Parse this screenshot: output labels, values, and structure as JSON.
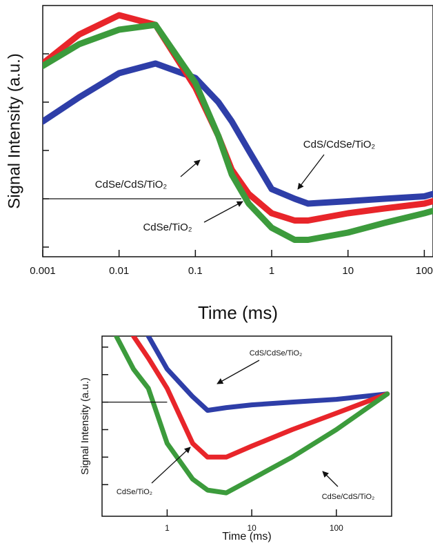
{
  "chart_data": [
    {
      "type": "line",
      "x_label": "Time (ms)",
      "y_label": "Signal Intensity (a.u.)",
      "log_x": true,
      "xlim": [
        0.001,
        130
      ],
      "xticks": [
        0.001,
        0.01,
        0.1,
        1,
        10,
        100
      ],
      "ylim": [
        -1.2,
        4
      ],
      "yticks": [
        -1,
        0,
        1,
        2,
        3
      ],
      "x": [
        0.001,
        0.003,
        0.01,
        0.03,
        0.1,
        0.2,
        0.3,
        0.5,
        1,
        2,
        3,
        10,
        30,
        100,
        130
      ],
      "series": [
        {
          "name": "CdS/CdSe/TiO₂",
          "color": "#2e3ea8",
          "values": [
            1.6,
            2.1,
            2.6,
            2.8,
            2.5,
            2.0,
            1.6,
            1.0,
            0.2,
            0.0,
            -0.1,
            -0.05,
            0.0,
            0.05,
            0.1
          ]
        },
        {
          "name": "CdSe/TiO₂",
          "color": "#e8252a",
          "values": [
            2.8,
            3.4,
            3.8,
            3.6,
            2.3,
            1.3,
            0.6,
            0.1,
            -0.3,
            -0.45,
            -0.45,
            -0.3,
            -0.2,
            -0.1,
            -0.05
          ]
        },
        {
          "name": "CdSe/CdS/TiO₂",
          "color": "#3c9b3c",
          "values": [
            2.75,
            3.2,
            3.5,
            3.6,
            2.4,
            1.3,
            0.5,
            -0.1,
            -0.6,
            -0.85,
            -0.85,
            -0.7,
            -0.5,
            -0.3,
            -0.25
          ]
        }
      ]
    },
    {
      "type": "line",
      "x_label": "Time (ms)",
      "y_label": "Signal Intensity (a.u.)",
      "log_x": true,
      "xlim": [
        0.17,
        450
      ],
      "xticks": [
        1,
        10,
        100
      ],
      "ylim": [
        -4.15,
        2.4
      ],
      "yticks": [
        -3,
        -2,
        -1,
        0,
        1,
        2
      ],
      "x": [
        0.25,
        0.4,
        0.6,
        1,
        2,
        3,
        5,
        10,
        30,
        100,
        400
      ],
      "series": [
        {
          "name": "CdS/CdSe/TiO₂",
          "color": "#2e3ea8",
          "values": [
            null,
            null,
            2.4,
            1.2,
            0.2,
            -0.3,
            -0.2,
            -0.1,
            0.0,
            0.1,
            0.3
          ]
        },
        {
          "name": "CdSe/TiO₂",
          "color": "#e8252a",
          "values": [
            null,
            2.4,
            1.6,
            0.5,
            -1.5,
            -2.0,
            -2.0,
            -1.6,
            -1.0,
            -0.4,
            0.3
          ]
        },
        {
          "name": "CdSe/CdS/TiO₂",
          "color": "#3c9b3c",
          "values": [
            2.4,
            1.2,
            0.5,
            -1.5,
            -2.8,
            -3.2,
            -3.3,
            -2.8,
            -2.0,
            -1.0,
            0.3
          ]
        }
      ]
    }
  ]
}
